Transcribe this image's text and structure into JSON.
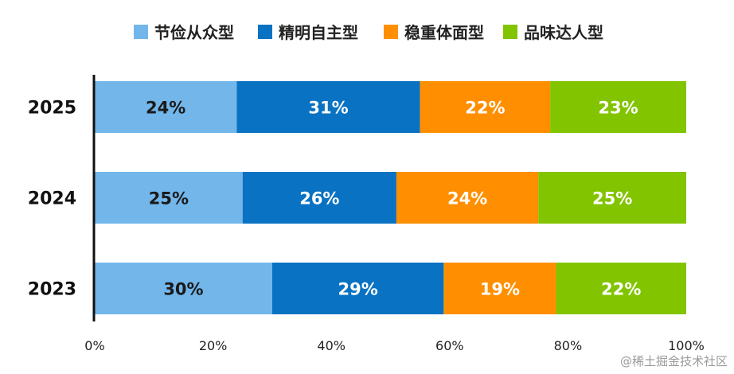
{
  "chart_data": {
    "type": "bar",
    "orientation": "horizontal",
    "stacked": true,
    "categories": [
      "2025",
      "2024",
      "2023"
    ],
    "series": [
      {
        "name": "节俭从众型",
        "values": [
          24,
          25,
          30
        ],
        "color": "#72b6ea",
        "label_color": "#1a1a1a"
      },
      {
        "name": "精明自主型",
        "values": [
          31,
          26,
          29
        ],
        "color": "#0a72c2",
        "label_color": "#ffffff"
      },
      {
        "name": "稳重体面型",
        "values": [
          22,
          24,
          19
        ],
        "color": "#ff8f00",
        "label_color": "#ffffff"
      },
      {
        "name": "品味达人型",
        "values": [
          23,
          25,
          22
        ],
        "color": "#82c400",
        "label_color": "#ffffff"
      }
    ],
    "xlim": [
      0,
      100
    ],
    "xticks": [
      "0%",
      "20%",
      "40%",
      "60%",
      "80%",
      "100%"
    ],
    "legend_position": "top",
    "grid": false
  },
  "watermark": "@稀土掘金技术社区"
}
